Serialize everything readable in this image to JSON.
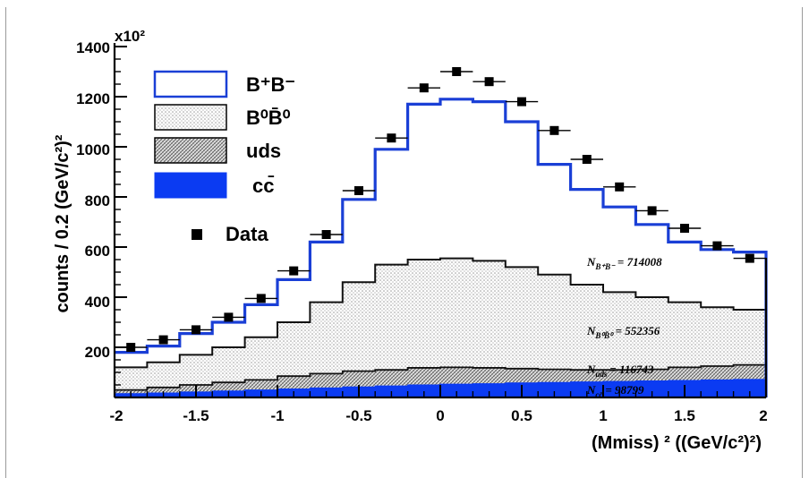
{
  "chart_data": {
    "type": "histogram",
    "xlabel": "(Mmiss) ² ((GeV/c²)²)",
    "ylabel": "counts / 0.2 (GeV/c²)²",
    "y_multiplier": "x10²",
    "xlim": [
      -2,
      2
    ],
    "ylim": [
      0,
      1400
    ],
    "x_ticks": [
      "-2",
      "-1.5",
      "-1",
      "-0.5",
      "0",
      "0.5",
      "1",
      "1.5",
      "2"
    ],
    "y_ticks": [
      "200",
      "400",
      "600",
      "800",
      "1000",
      "1200",
      "1400"
    ],
    "bin_edges": [
      -2.0,
      -1.8,
      -1.6,
      -1.4,
      -1.2,
      -1.0,
      -0.8,
      -0.6,
      -0.4,
      -0.2,
      0.0,
      0.2,
      0.4,
      0.6,
      0.8,
      1.0,
      1.2,
      1.4,
      1.6,
      1.8,
      2.0
    ],
    "series": [
      {
        "name": "B⁺B⁻",
        "style": "open-blue",
        "values": [
          180,
          205,
          255,
          300,
          370,
          470,
          620,
          790,
          990,
          1170,
          1190,
          1180,
          1100,
          930,
          830,
          760,
          690,
          620,
          590,
          580
        ]
      },
      {
        "name": "B⁰B̄⁰",
        "style": "light-hatch",
        "values": [
          120,
          140,
          170,
          200,
          240,
          300,
          380,
          460,
          530,
          550,
          555,
          545,
          520,
          490,
          450,
          420,
          400,
          380,
          360,
          350
        ]
      },
      {
        "name": "uds",
        "style": "dark-hatch",
        "values": [
          30,
          40,
          50,
          60,
          70,
          85,
          95,
          105,
          110,
          118,
          120,
          118,
          115,
          112,
          110,
          110,
          112,
          120,
          125,
          130
        ]
      },
      {
        "name": "cc̄",
        "style": "solid-blue",
        "values": [
          15,
          18,
          22,
          26,
          30,
          34,
          38,
          42,
          46,
          50,
          53,
          55,
          58,
          60,
          62,
          64,
          66,
          68,
          70,
          72
        ]
      }
    ],
    "data_points": {
      "name": "Data",
      "x": [
        -1.9,
        -1.7,
        -1.5,
        -1.3,
        -1.1,
        -0.9,
        -0.7,
        -0.5,
        -0.3,
        -0.1,
        0.1,
        0.3,
        0.5,
        0.7,
        0.9,
        1.1,
        1.3,
        1.5,
        1.7,
        1.9
      ],
      "y": [
        200,
        230,
        270,
        320,
        395,
        505,
        650,
        825,
        1035,
        1235,
        1300,
        1260,
        1180,
        1065,
        950,
        840,
        745,
        675,
        605,
        555
      ]
    },
    "annotations": [
      {
        "label": "N",
        "sub": "B⁺B⁻",
        "value": "= 714008"
      },
      {
        "label": "N",
        "sub": "B⁰B̄⁰",
        "value": "= 552356"
      },
      {
        "label": "N",
        "sub": "uds",
        "value": "= 116743"
      },
      {
        "label": "N",
        "sub": "cc̄",
        "value": "= 98799"
      }
    ],
    "legend_position": "top-left",
    "grid": false,
    "colors": {
      "bplus": "#1a3fd6",
      "cc": "#0b3bf2",
      "hatch_light": "#cfcfcf",
      "hatch_dark": "#7d7d7d"
    }
  }
}
